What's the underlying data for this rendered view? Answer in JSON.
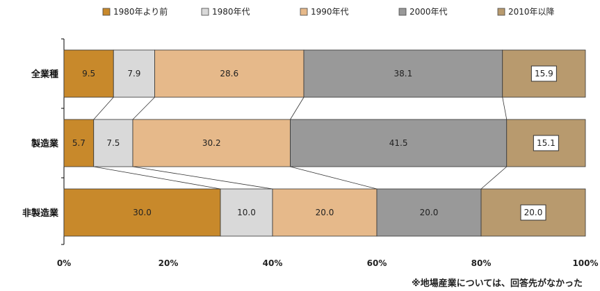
{
  "chart_data": {
    "type": "bar",
    "orientation": "horizontal",
    "stacked": true,
    "percent": true,
    "categories": [
      "全業種",
      "製造業",
      "非製造業"
    ],
    "series": [
      {
        "name": "1980年より前",
        "color": "#c8892b",
        "values": [
          9.5,
          5.7,
          30.0
        ],
        "labels": [
          "9.5",
          "5.7",
          "30.0"
        ]
      },
      {
        "name": "1980年代",
        "color": "#d9d9d9",
        "values": [
          7.9,
          7.5,
          10.0
        ],
        "labels": [
          "7.9",
          "7.5",
          "10.0"
        ]
      },
      {
        "name": "1990年代",
        "color": "#e6b98a",
        "values": [
          28.6,
          30.2,
          20.0
        ],
        "labels": [
          "28.6",
          "30.2",
          "20.0"
        ]
      },
      {
        "name": "2000年代",
        "color": "#999999",
        "values": [
          38.1,
          41.5,
          20.0
        ],
        "labels": [
          "38.1",
          "41.5",
          "20.0"
        ]
      },
      {
        "name": "2010年以降",
        "color": "#b89a6e",
        "values": [
          15.9,
          15.1,
          20.0
        ],
        "labels": [
          "15.9",
          "15.1",
          "20.0"
        ]
      }
    ],
    "boxed_series": "2010年以降",
    "connector_lines": true,
    "xlim": [
      0,
      100
    ],
    "xticks": [
      "0%",
      "20%",
      "40%",
      "60%",
      "80%",
      "100%"
    ],
    "grid": false,
    "legend_position": "top",
    "note": "※地場産業については、回答先がなかった"
  }
}
